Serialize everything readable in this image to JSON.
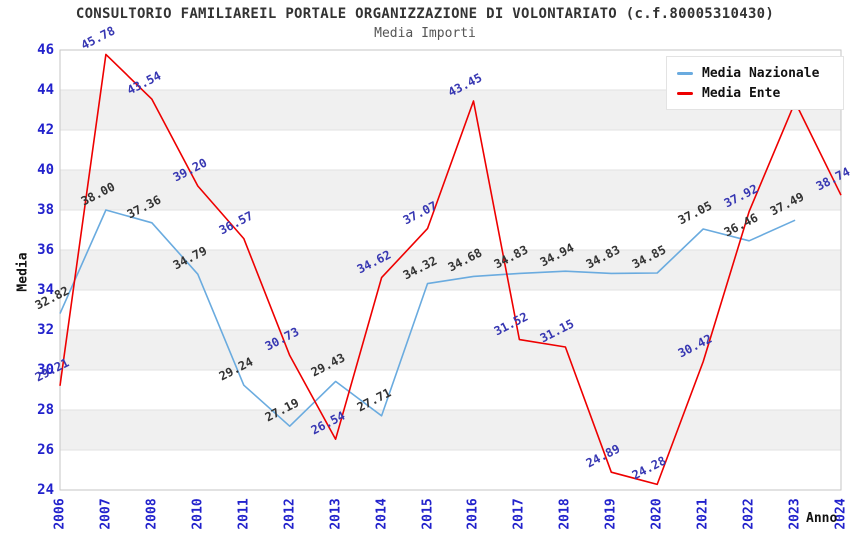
{
  "chart_data": {
    "type": "line",
    "title": "CONSULTORIO FAMILIAREIL PORTALE ORGANIZZAZIONE DI VOLONTARIATO (c.f.80005310430)",
    "subtitle": "Media Importi",
    "xlabel": "Anno",
    "ylabel": "Media",
    "categories": [
      "2006",
      "2007",
      "2008",
      "2010",
      "2011",
      "2012",
      "2013",
      "2014",
      "2015",
      "2016",
      "2017",
      "2018",
      "2019",
      "2020",
      "2021",
      "2022",
      "2023",
      "2024"
    ],
    "ylim": [
      24,
      46
    ],
    "yticks": [
      46,
      44,
      42,
      40,
      38,
      36,
      34,
      32,
      30,
      28,
      26,
      24
    ],
    "grid": "alternating-horizontal-bands",
    "legend_position": "top-right",
    "colors": {
      "band_gray": "#f0f0f0",
      "gridline": "#e2e2e2",
      "plot_border": "#c6c6c6",
      "tick_label_blue": "#2222cc"
    },
    "series": [
      {
        "name": "Media Nazionale",
        "color": "#6aabdf",
        "label_color": "#333333",
        "values": [
          32.82,
          38.0,
          37.36,
          34.79,
          29.24,
          27.19,
          29.43,
          27.71,
          34.32,
          34.68,
          34.83,
          34.94,
          34.83,
          34.85,
          37.05,
          36.46,
          37.49,
          null
        ]
      },
      {
        "name": "Media Ente",
        "color": "#ee0000",
        "label_color": "#3737b2",
        "values": [
          29.21,
          45.78,
          43.54,
          39.2,
          36.57,
          30.73,
          26.54,
          34.62,
          37.07,
          43.45,
          31.52,
          31.15,
          24.89,
          24.28,
          30.42,
          37.92,
          43.4,
          38.74
        ],
        "hidden_label_indices": [
          16
        ]
      }
    ]
  }
}
